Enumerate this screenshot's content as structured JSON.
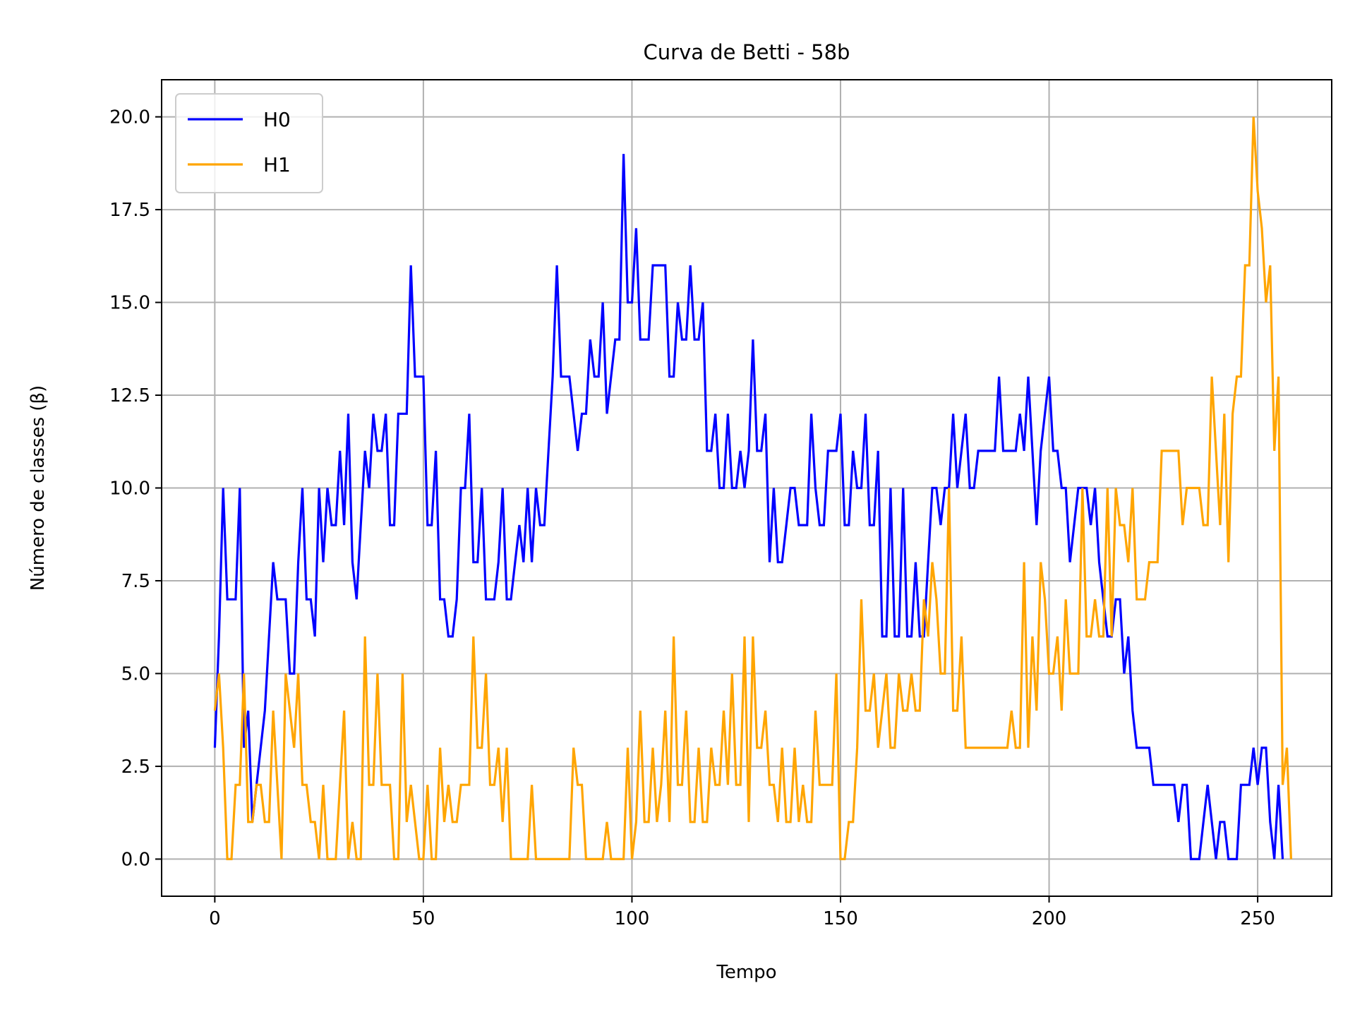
{
  "chart_data": {
    "type": "line",
    "title": "Curva de Betti - 58b",
    "xlabel": "Tempo",
    "ylabel": "Número de classes (β)",
    "xlim": [
      -12.75,
      267.75
    ],
    "ylim": [
      -1.0,
      21.0
    ],
    "xticks": [
      0,
      50,
      100,
      150,
      200,
      250
    ],
    "xtick_labels": [
      "0",
      "50",
      "100",
      "150",
      "200",
      "250"
    ],
    "yticks": [
      0.0,
      2.5,
      5.0,
      7.5,
      10.0,
      12.5,
      15.0,
      17.5,
      20.0
    ],
    "ytick_labels": [
      "0.0",
      "2.5",
      "5.0",
      "7.5",
      "10.0",
      "12.5",
      "15.0",
      "17.5",
      "20.0"
    ],
    "grid": true,
    "legend_position": "upper-left",
    "series": [
      {
        "name": "H0",
        "color": "#0000ff",
        "values": [
          3,
          6,
          10,
          7,
          7,
          7,
          10,
          3,
          4,
          1,
          2,
          3,
          4,
          6,
          8,
          7,
          7,
          7,
          5,
          5,
          8,
          10,
          7,
          7,
          6,
          10,
          8,
          10,
          9,
          9,
          11,
          9,
          12,
          8,
          7,
          9,
          11,
          10,
          12,
          11,
          11,
          12,
          9,
          9,
          12,
          12,
          12,
          16,
          13,
          13,
          13,
          9,
          9,
          11,
          7,
          7,
          6,
          6,
          7,
          10,
          10,
          12,
          8,
          8,
          10,
          7,
          7,
          7,
          8,
          10,
          7,
          7,
          8,
          9,
          8,
          10,
          8,
          10,
          9,
          9,
          11,
          13,
          16,
          13,
          13,
          13,
          12,
          11,
          12,
          12,
          14,
          13,
          13,
          15,
          12,
          13,
          14,
          14,
          19,
          15,
          15,
          17,
          14,
          14,
          14,
          16,
          16,
          16,
          16,
          13,
          13,
          15,
          14,
          14,
          16,
          14,
          14,
          15,
          11,
          11,
          12,
          10,
          10,
          12,
          10,
          10,
          11,
          10,
          11,
          14,
          11,
          11,
          12,
          8,
          10,
          8,
          8,
          9,
          10,
          10,
          9,
          9,
          9,
          12,
          10,
          9,
          9,
          11,
          11,
          11,
          12,
          9,
          9,
          11,
          10,
          10,
          12,
          9,
          9,
          11,
          6,
          6,
          10,
          6,
          6,
          10,
          6,
          6,
          8,
          6,
          6,
          8,
          10,
          10,
          9,
          10,
          10,
          12,
          10,
          11,
          12,
          10,
          10,
          11,
          11,
          11,
          11,
          11,
          13,
          11,
          11,
          11,
          11,
          12,
          11,
          13,
          11,
          9,
          11,
          12,
          13,
          11,
          11,
          10,
          10,
          8,
          9,
          10,
          10,
          10,
          9,
          10,
          8,
          7,
          6,
          6,
          7,
          7,
          5,
          6,
          4,
          3,
          3,
          3,
          3,
          2,
          2,
          2,
          2,
          2,
          2,
          1,
          2,
          2,
          0,
          0,
          0,
          1,
          2,
          1,
          0,
          1,
          1,
          0,
          0,
          0,
          2,
          2,
          2,
          3,
          2,
          3,
          3,
          1,
          0,
          2,
          0,
          null
        ],
        "x_range": [
          0,
          255
        ]
      },
      {
        "name": "H1",
        "color": "#ffa500",
        "values": [
          4,
          5,
          3,
          0,
          0,
          2,
          2,
          5,
          1,
          1,
          2,
          2,
          1,
          1,
          4,
          2,
          0,
          5,
          4,
          3,
          5,
          2,
          2,
          1,
          1,
          0,
          2,
          0,
          0,
          0,
          2,
          4,
          0,
          1,
          0,
          0,
          6,
          2,
          2,
          5,
          2,
          2,
          2,
          0,
          0,
          5,
          1,
          2,
          1,
          0,
          0,
          2,
          0,
          0,
          3,
          1,
          2,
          1,
          1,
          2,
          2,
          2,
          6,
          3,
          3,
          5,
          2,
          2,
          3,
          1,
          3,
          0,
          0,
          0,
          0,
          0,
          2,
          0,
          0,
          0,
          0,
          0,
          0,
          0,
          0,
          0,
          3,
          2,
          2,
          0,
          0,
          0,
          0,
          0,
          1,
          0,
          0,
          0,
          0,
          3,
          0,
          1,
          4,
          1,
          1,
          3,
          1,
          2,
          4,
          1,
          6,
          2,
          2,
          4,
          1,
          1,
          3,
          1,
          1,
          3,
          2,
          2,
          4,
          2,
          5,
          2,
          2,
          6,
          1,
          6,
          3,
          3,
          4,
          2,
          2,
          1,
          3,
          1,
          1,
          3,
          1,
          2,
          1,
          1,
          4,
          2,
          2,
          2,
          2,
          5,
          0,
          0,
          1,
          1,
          3,
          7,
          4,
          4,
          5,
          3,
          4,
          5,
          3,
          3,
          5,
          4,
          4,
          5,
          4,
          4,
          7,
          6,
          8,
          7,
          5,
          5,
          10,
          4,
          4,
          6,
          3,
          3,
          3,
          3,
          3,
          3,
          3,
          3,
          3,
          3,
          3,
          4,
          3,
          3,
          8,
          3,
          6,
          4,
          8,
          7,
          5,
          5,
          6,
          4,
          7,
          5,
          5,
          5,
          10,
          6,
          6,
          7,
          6,
          6,
          10,
          6,
          10,
          9,
          9,
          8,
          10,
          7,
          7,
          7,
          8,
          8,
          8,
          11,
          11,
          11,
          11,
          11,
          9,
          10,
          10,
          10,
          10,
          9,
          9,
          13,
          11,
          9,
          12,
          8,
          12,
          13,
          13,
          16,
          16,
          20,
          18,
          17,
          15,
          16,
          11,
          13,
          2,
          3,
          0
        ],
        "x_range": [
          0,
          255
        ]
      }
    ]
  }
}
